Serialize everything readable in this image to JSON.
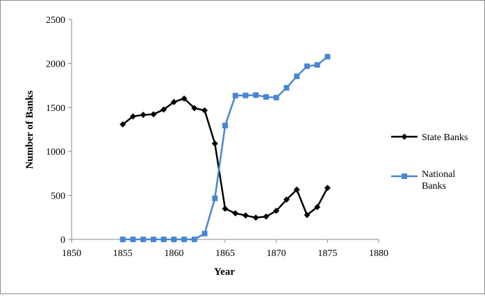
{
  "chart_data": {
    "type": "line",
    "xlabel": "Year",
    "ylabel": "Number of Banks",
    "xlim": [
      1850,
      1880
    ],
    "ylim": [
      0,
      2500
    ],
    "x_ticks": [
      1850,
      1855,
      1860,
      1865,
      1870,
      1875,
      1880
    ],
    "y_ticks": [
      0,
      500,
      1000,
      1500,
      2000,
      2500
    ],
    "x_tick_labels": [
      "1850",
      "1855",
      "1860",
      "1865",
      "1870",
      "1875",
      "1880"
    ],
    "y_tick_labels": [
      "0",
      "500",
      "1000",
      "1500",
      "2000",
      "2500"
    ],
    "grid": false,
    "legend_position": "right",
    "x": [
      1855,
      1856,
      1857,
      1858,
      1859,
      1860,
      1861,
      1862,
      1863,
      1864,
      1865,
      1866,
      1867,
      1868,
      1869,
      1870,
      1871,
      1872,
      1873,
      1874,
      1875
    ],
    "series": [
      {
        "name": "State Banks",
        "color": "#000000",
        "marker": "diamond",
        "values": [
          1307,
          1398,
          1416,
          1422,
          1476,
          1562,
          1601,
          1492,
          1466,
          1089,
          349,
          297,
          272,
          247,
          259,
          325,
          452,
          566,
          277,
          368,
          586
        ]
      },
      {
        "name": "National Banks",
        "color": "#4a86d0",
        "marker": "square",
        "values": [
          0,
          0,
          0,
          0,
          0,
          0,
          0,
          0,
          66,
          467,
          1294,
          1634,
          1636,
          1640,
          1619,
          1612,
          1723,
          1853,
          1968,
          1983,
          2076
        ]
      }
    ]
  }
}
